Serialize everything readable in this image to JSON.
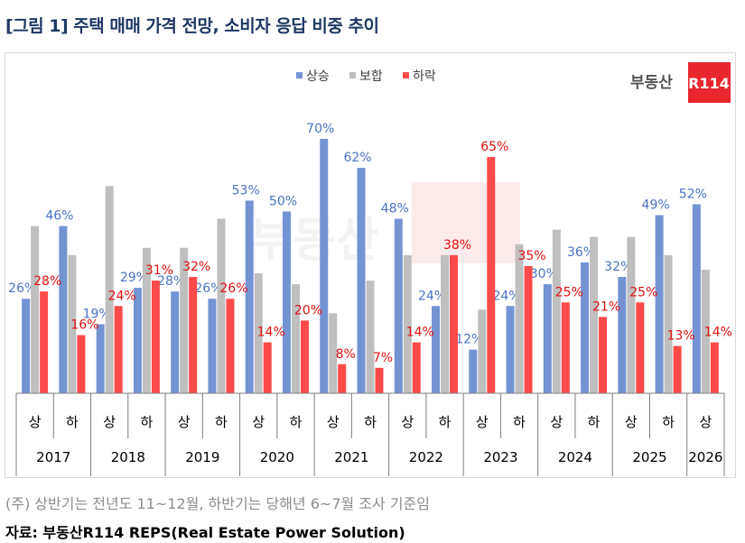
{
  "title": "[그림 1] 주택 매매 가격 전망, 소비자 응답 비중 추이",
  "logo": {
    "text": "부동산",
    "badge": "R114",
    "color": "#e8262d"
  },
  "note": "(주) 상반기는 전년도 11~12월, 하반기는 당해년 6~7월 조사 기준임",
  "source": "자료: 부동산R114 REPS(Real Estate Power Solution)",
  "chart_data": {
    "type": "bar",
    "legend_position": "top",
    "grid": false,
    "ylim": [
      0,
      100
    ],
    "categories": [
      "상",
      "하",
      "상",
      "하",
      "상",
      "하",
      "상",
      "하",
      "상",
      "하",
      "상",
      "하",
      "상",
      "하",
      "상",
      "하",
      "상",
      "하",
      "상"
    ],
    "years": [
      {
        "label": "2017",
        "span": 2
      },
      {
        "label": "2018",
        "span": 2
      },
      {
        "label": "2019",
        "span": 2
      },
      {
        "label": "2020",
        "span": 2
      },
      {
        "label": "2021",
        "span": 2
      },
      {
        "label": "2022",
        "span": 2
      },
      {
        "label": "2023",
        "span": 2
      },
      {
        "label": "2024",
        "span": 2
      },
      {
        "label": "2025",
        "span": 2
      },
      {
        "label": "2026",
        "span": 1
      }
    ],
    "series": [
      {
        "name": "상승",
        "color": "#7393d3",
        "labeled": true,
        "label_color": "#4a72c4",
        "values": [
          26,
          46,
          19,
          29,
          28,
          26,
          53,
          50,
          70,
          62,
          48,
          24,
          12,
          24,
          30,
          36,
          32,
          49,
          52
        ]
      },
      {
        "name": "보합",
        "color": "#bfbfbf",
        "labeled": false,
        "values": [
          46,
          38,
          57,
          40,
          40,
          48,
          33,
          30,
          22,
          31,
          38,
          38,
          23,
          41,
          45,
          43,
          43,
          38,
          34
        ]
      },
      {
        "name": "하락",
        "color": "#ff4a4a",
        "labeled": true,
        "label_color": "#e01010",
        "values": [
          28,
          16,
          24,
          31,
          32,
          26,
          14,
          20,
          8,
          7,
          14,
          38,
          65,
          35,
          25,
          21,
          25,
          13,
          14
        ]
      }
    ]
  }
}
